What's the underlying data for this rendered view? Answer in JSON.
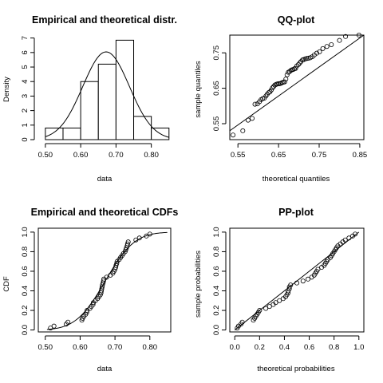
{
  "chart_data": [
    {
      "id": "density",
      "type": "bar",
      "title": "Empirical and theoretical distr.",
      "xlabel": "data",
      "ylabel": "Density",
      "xlim": [
        0.48,
        0.855
      ],
      "ylim": [
        0,
        7.2
      ],
      "xticks": [
        0.5,
        0.6,
        0.7,
        0.8
      ],
      "xtick_labels": [
        "0.50",
        "0.60",
        "0.70",
        "0.80"
      ],
      "yticks": [
        0,
        1,
        2,
        3,
        4,
        5,
        6,
        7
      ],
      "ytick_labels": [
        "0",
        "1",
        "2",
        "3",
        "4",
        "5",
        "6",
        "7"
      ],
      "bins": [
        {
          "x0": 0.5,
          "x1": 0.55,
          "value": 0.8
        },
        {
          "x0": 0.55,
          "x1": 0.6,
          "value": 0.8
        },
        {
          "x0": 0.6,
          "x1": 0.65,
          "value": 4.0
        },
        {
          "x0": 0.65,
          "x1": 0.7,
          "value": 5.2
        },
        {
          "x0": 0.7,
          "x1": 0.75,
          "value": 6.85
        },
        {
          "x0": 0.75,
          "x1": 0.8,
          "value": 1.6
        },
        {
          "x0": 0.8,
          "x1": 0.85,
          "value": 0.8
        }
      ],
      "theoretical": {
        "distribution": "normal",
        "mean": 0.672,
        "sd": 0.066
      },
      "frame": false
    },
    {
      "id": "qq",
      "type": "scatter",
      "title": "QQ-plot",
      "xlabel": "theoretical quantiles",
      "ylabel": "sample quantiles",
      "xlim": [
        0.53,
        0.86
      ],
      "ylim": [
        0.505,
        0.8
      ],
      "xticks": [
        0.55,
        0.65,
        0.75,
        0.85
      ],
      "xtick_labels": [
        "0.55",
        "0.65",
        "0.75",
        "0.85"
      ],
      "yticks": [
        0.55,
        0.65,
        0.75
      ],
      "ytick_labels": [
        "0.55",
        "0.65",
        "0.75"
      ],
      "points": [
        [
          0.538,
          0.518
        ],
        [
          0.562,
          0.53
        ],
        [
          0.575,
          0.56
        ],
        [
          0.585,
          0.565
        ],
        [
          0.592,
          0.605
        ],
        [
          0.598,
          0.606
        ],
        [
          0.603,
          0.612
        ],
        [
          0.607,
          0.618
        ],
        [
          0.611,
          0.621
        ],
        [
          0.615,
          0.622
        ],
        [
          0.619,
          0.628
        ],
        [
          0.622,
          0.633
        ],
        [
          0.626,
          0.638
        ],
        [
          0.629,
          0.64
        ],
        [
          0.632,
          0.645
        ],
        [
          0.635,
          0.651
        ],
        [
          0.638,
          0.655
        ],
        [
          0.641,
          0.659
        ],
        [
          0.644,
          0.661
        ],
        [
          0.647,
          0.662
        ],
        [
          0.65,
          0.663
        ],
        [
          0.653,
          0.663
        ],
        [
          0.656,
          0.664
        ],
        [
          0.659,
          0.666
        ],
        [
          0.662,
          0.667
        ],
        [
          0.665,
          0.668
        ],
        [
          0.668,
          0.676
        ],
        [
          0.671,
          0.688
        ],
        [
          0.674,
          0.695
        ],
        [
          0.677,
          0.697
        ],
        [
          0.68,
          0.7
        ],
        [
          0.683,
          0.702
        ],
        [
          0.686,
          0.703
        ],
        [
          0.689,
          0.705
        ],
        [
          0.692,
          0.706
        ],
        [
          0.695,
          0.713
        ],
        [
          0.699,
          0.717
        ],
        [
          0.702,
          0.721
        ],
        [
          0.705,
          0.725
        ],
        [
          0.709,
          0.73
        ],
        [
          0.712,
          0.731
        ],
        [
          0.716,
          0.733
        ],
        [
          0.72,
          0.734
        ],
        [
          0.724,
          0.735
        ],
        [
          0.728,
          0.736
        ],
        [
          0.733,
          0.739
        ],
        [
          0.738,
          0.744
        ],
        [
          0.744,
          0.749
        ],
        [
          0.751,
          0.753
        ],
        [
          0.759,
          0.762
        ],
        [
          0.769,
          0.768
        ],
        [
          0.78,
          0.773
        ],
        [
          0.8,
          0.785
        ],
        [
          0.815,
          0.796
        ],
        [
          0.848,
          0.8
        ]
      ],
      "reference_line": [
        [
          0.53,
          0.53
        ],
        [
          0.86,
          0.8
        ]
      ],
      "frame": true
    },
    {
      "id": "cdf",
      "type": "scatter",
      "title": "Empirical and theoretical CDFs",
      "xlabel": "data",
      "ylabel": "CDF",
      "xlim": [
        0.48,
        0.86
      ],
      "ylim": [
        -0.02,
        1.04
      ],
      "xticks": [
        0.5,
        0.6,
        0.7,
        0.8
      ],
      "xtick_labels": [
        "0.50",
        "0.60",
        "0.70",
        "0.80"
      ],
      "yticks": [
        0.0,
        0.2,
        0.4,
        0.6,
        0.8,
        1.0
      ],
      "ytick_labels": [
        "0.0",
        "0.2",
        "0.4",
        "0.6",
        "0.8",
        "1.0"
      ],
      "points": [
        [
          0.515,
          0.02
        ],
        [
          0.525,
          0.04
        ],
        [
          0.56,
          0.06
        ],
        [
          0.565,
          0.08
        ],
        [
          0.605,
          0.1
        ],
        [
          0.607,
          0.12
        ],
        [
          0.611,
          0.14
        ],
        [
          0.616,
          0.16
        ],
        [
          0.619,
          0.18
        ],
        [
          0.62,
          0.2
        ],
        [
          0.628,
          0.22
        ],
        [
          0.632,
          0.24
        ],
        [
          0.637,
          0.26
        ],
        [
          0.638,
          0.28
        ],
        [
          0.644,
          0.3
        ],
        [
          0.65,
          0.32
        ],
        [
          0.654,
          0.34
        ],
        [
          0.658,
          0.36
        ],
        [
          0.66,
          0.38
        ],
        [
          0.661,
          0.4
        ],
        [
          0.662,
          0.42
        ],
        [
          0.663,
          0.44
        ],
        [
          0.664,
          0.46
        ],
        [
          0.666,
          0.48
        ],
        [
          0.667,
          0.5
        ],
        [
          0.668,
          0.52
        ],
        [
          0.676,
          0.54
        ],
        [
          0.687,
          0.56
        ],
        [
          0.694,
          0.58
        ],
        [
          0.697,
          0.6
        ],
        [
          0.7,
          0.62
        ],
        [
          0.702,
          0.64
        ],
        [
          0.703,
          0.66
        ],
        [
          0.705,
          0.68
        ],
        [
          0.706,
          0.7
        ],
        [
          0.712,
          0.72
        ],
        [
          0.716,
          0.74
        ],
        [
          0.72,
          0.76
        ],
        [
          0.724,
          0.78
        ],
        [
          0.729,
          0.8
        ],
        [
          0.731,
          0.82
        ],
        [
          0.733,
          0.84
        ],
        [
          0.735,
          0.86
        ],
        [
          0.736,
          0.88
        ],
        [
          0.738,
          0.9
        ],
        [
          0.76,
          0.92
        ],
        [
          0.77,
          0.94
        ],
        [
          0.79,
          0.96
        ],
        [
          0.8,
          0.98
        ]
      ],
      "theoretical": {
        "distribution": "normal",
        "mean": 0.672,
        "sd": 0.066
      },
      "frame": true
    },
    {
      "id": "pp",
      "type": "scatter",
      "title": "PP-plot",
      "xlabel": "theoretical probabilities",
      "ylabel": "sample probabilities",
      "xlim": [
        -0.04,
        1.04
      ],
      "ylim": [
        -0.02,
        1.04
      ],
      "xticks": [
        0.0,
        0.2,
        0.4,
        0.6,
        0.8,
        1.0
      ],
      "xtick_labels": [
        "0.0",
        "0.2",
        "0.4",
        "0.6",
        "0.8",
        "1.0"
      ],
      "yticks": [
        0.0,
        0.2,
        0.4,
        0.6,
        0.8,
        1.0
      ],
      "ytick_labels": [
        "0.0",
        "0.2",
        "0.4",
        "0.6",
        "0.8",
        "1.0"
      ],
      "points": [
        [
          0.02,
          0.02
        ],
        [
          0.03,
          0.04
        ],
        [
          0.05,
          0.06
        ],
        [
          0.06,
          0.08
        ],
        [
          0.15,
          0.1
        ],
        [
          0.16,
          0.12
        ],
        [
          0.17,
          0.14
        ],
        [
          0.18,
          0.16
        ],
        [
          0.19,
          0.18
        ],
        [
          0.2,
          0.2
        ],
        [
          0.25,
          0.22
        ],
        [
          0.28,
          0.24
        ],
        [
          0.31,
          0.26
        ],
        [
          0.33,
          0.28
        ],
        [
          0.36,
          0.3
        ],
        [
          0.39,
          0.32
        ],
        [
          0.41,
          0.34
        ],
        [
          0.42,
          0.36
        ],
        [
          0.43,
          0.38
        ],
        [
          0.43,
          0.4
        ],
        [
          0.44,
          0.42
        ],
        [
          0.44,
          0.44
        ],
        [
          0.45,
          0.46
        ],
        [
          0.5,
          0.48
        ],
        [
          0.55,
          0.5
        ],
        [
          0.59,
          0.52
        ],
        [
          0.62,
          0.54
        ],
        [
          0.64,
          0.56
        ],
        [
          0.65,
          0.58
        ],
        [
          0.66,
          0.6
        ],
        [
          0.67,
          0.62
        ],
        [
          0.7,
          0.64
        ],
        [
          0.72,
          0.66
        ],
        [
          0.73,
          0.68
        ],
        [
          0.74,
          0.7
        ],
        [
          0.75,
          0.72
        ],
        [
          0.77,
          0.74
        ],
        [
          0.78,
          0.76
        ],
        [
          0.79,
          0.78
        ],
        [
          0.8,
          0.8
        ],
        [
          0.81,
          0.82
        ],
        [
          0.82,
          0.84
        ],
        [
          0.83,
          0.86
        ],
        [
          0.85,
          0.88
        ],
        [
          0.87,
          0.9
        ],
        [
          0.89,
          0.92
        ],
        [
          0.92,
          0.94
        ],
        [
          0.95,
          0.96
        ],
        [
          0.97,
          0.98
        ]
      ],
      "reference_line": [
        [
          0,
          0
        ],
        [
          1,
          1
        ]
      ],
      "frame": true
    }
  ]
}
